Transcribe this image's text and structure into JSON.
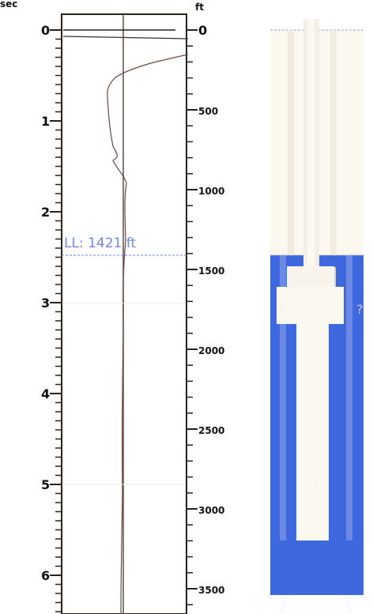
{
  "left_axis": {
    "unit_label": "sec",
    "ticks": [
      "0",
      "1",
      "2",
      "3",
      "4",
      "5",
      "6"
    ]
  },
  "right_axis": {
    "unit_label": "ft",
    "ticks": [
      "0",
      "500",
      "1000",
      "1500",
      "2000",
      "2500",
      "3000",
      "3500"
    ]
  },
  "liquid_level": {
    "label": "LL: 1421 ft",
    "depth_ft": 1421
  },
  "question_marks": [
    "?",
    "?",
    "?",
    "?",
    "?"
  ],
  "colors": {
    "wellbore_fill": "#3f67de",
    "casing_light": "#fbf8f0",
    "line_dark": "#2b2119",
    "dashed_blue": "#6f86e8",
    "grid_light": "#efebe7"
  }
}
